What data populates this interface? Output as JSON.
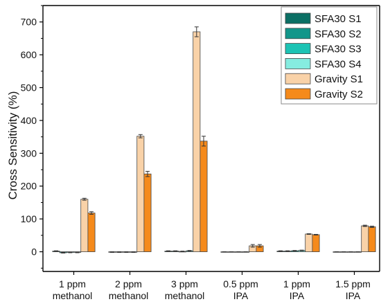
{
  "chart_data": {
    "type": "bar",
    "title": "",
    "xlabel": "",
    "ylabel": "Cross Sensitivity (%)",
    "ylim": [
      -60,
      750
    ],
    "yticks": [
      0,
      100,
      200,
      300,
      400,
      500,
      600,
      700
    ],
    "grid": false,
    "legend_position": "top-right",
    "categories": [
      {
        "line1": "1 ppm",
        "line2": "methanol"
      },
      {
        "line1": "2 ppm",
        "line2": "methanol"
      },
      {
        "line1": "3 ppm",
        "line2": "methanol"
      },
      {
        "line1": "0.5 ppm",
        "line2": "IPA"
      },
      {
        "line1": "1 ppm",
        "line2": "IPA"
      },
      {
        "line1": "1.5 ppm",
        "line2": "IPA"
      }
    ],
    "series": [
      {
        "name": "SFA30 S1",
        "color": "#0b6f64",
        "values": [
          2,
          -1,
          2,
          0,
          2,
          0
        ],
        "errors": [
          1,
          1,
          1,
          0,
          1,
          0
        ]
      },
      {
        "name": "SFA30 S2",
        "color": "#12968a",
        "values": [
          -3,
          -1,
          2,
          0,
          2,
          0
        ],
        "errors": [
          1,
          1,
          1,
          0,
          1,
          0
        ]
      },
      {
        "name": "SFA30 S3",
        "color": "#1cc3b4",
        "values": [
          -2,
          -1,
          1,
          0,
          3,
          0
        ],
        "errors": [
          1,
          1,
          1,
          0,
          1,
          0
        ]
      },
      {
        "name": "SFA30 S4",
        "color": "#86ece0",
        "values": [
          -2,
          -1,
          3,
          0,
          4,
          0
        ],
        "errors": [
          1,
          1,
          1,
          0,
          1,
          0
        ]
      },
      {
        "name": "Gravity S1",
        "color": "#f9d2a8",
        "values": [
          160,
          352,
          670,
          18,
          54,
          79
        ],
        "errors": [
          3,
          5,
          15,
          4,
          1,
          2
        ]
      },
      {
        "name": "Gravity S2",
        "color": "#f58a1b",
        "values": [
          118,
          237,
          337,
          18,
          52,
          76
        ],
        "errors": [
          4,
          8,
          15,
          4,
          1,
          2
        ]
      }
    ]
  }
}
